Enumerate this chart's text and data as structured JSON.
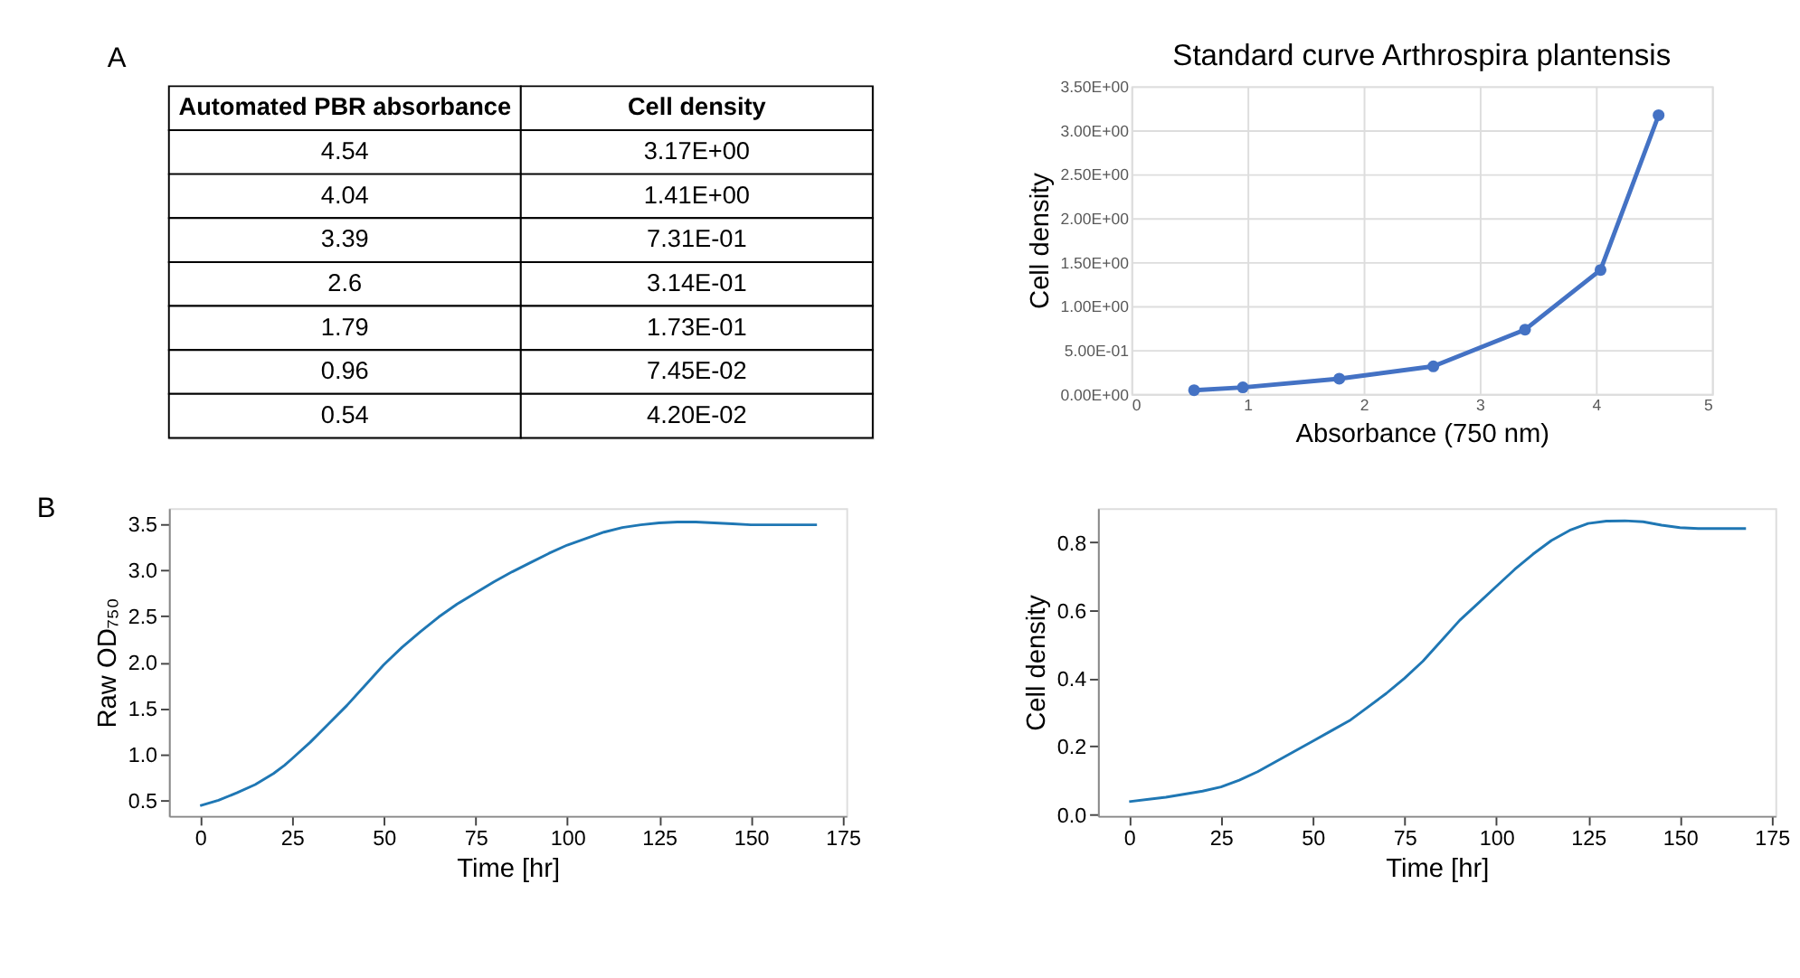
{
  "chart_data": [
    {
      "type": "other",
      "annotations": [
        "A",
        "Automated PBR absorbance",
        "Cell density",
        "4.54",
        "3.17E+00",
        "4.04",
        "1.41E+00",
        "3.39",
        "7.31E-01",
        "2.6",
        "3.14E-01",
        "1.79",
        "1.73E-01",
        "0.96",
        "7.45E-02",
        "0.54",
        "4.20E-02"
      ]
    },
    {
      "type": "line",
      "title": "Standard curve Arthrospira plantensis",
      "xlabel": "Absorbance (750 nm)",
      "ylabel": "Cell density",
      "x": [
        4.54,
        4.04,
        3.39,
        2.6,
        1.79,
        0.96,
        0.54
      ],
      "series": [
        {
          "color": "#4472c4",
          "values": [
            3.17,
            1.41,
            0.731,
            0.314,
            0.173,
            0.0745,
            0.042
          ]
        }
      ],
      "xlim": [
        0,
        5
      ],
      "xticks": [
        0,
        1,
        2,
        3,
        4,
        5
      ],
      "ylim": [
        0,
        3.5
      ],
      "yticks": [
        {
          "value": 0,
          "label": "0.00E+00"
        },
        {
          "value": 0.5,
          "label": "5.00E-01"
        },
        {
          "value": 1,
          "label": "1.00E+00"
        },
        {
          "value": 1.5,
          "label": "1.50E+00"
        },
        {
          "value": 2,
          "label": "2.00E+00"
        },
        {
          "value": 2.5,
          "label": "2.50E+00"
        },
        {
          "value": 3,
          "label": "3.00E+00"
        },
        {
          "value": 3.5,
          "label": "3.50E+00"
        }
      ],
      "grid": true,
      "marker": "circle"
    },
    {
      "type": "line",
      "xlabel": "Time [hr]",
      "ylabel": "Raw OD₇₅₀",
      "annotations": [
        "B"
      ],
      "x": [
        0,
        5,
        10,
        15,
        20,
        23,
        25,
        30,
        35,
        40,
        45,
        50,
        55,
        60,
        65,
        70,
        75,
        80,
        85,
        90,
        95,
        100,
        105,
        110,
        115,
        120,
        125,
        130,
        135,
        140,
        145,
        150,
        155,
        160,
        168
      ],
      "series": [
        {
          "color": "#1f77b4",
          "values": [
            0.44,
            0.5,
            0.58,
            0.67,
            0.79,
            0.88,
            0.95,
            1.13,
            1.33,
            1.53,
            1.75,
            1.97,
            2.16,
            2.33,
            2.49,
            2.63,
            2.75,
            2.87,
            2.98,
            3.08,
            3.18,
            3.27,
            3.34,
            3.41,
            3.46,
            3.49,
            3.51,
            3.52,
            3.52,
            3.51,
            3.5,
            3.49,
            3.49,
            3.49,
            3.49
          ]
        }
      ],
      "xlim": [
        -8.5,
        176
      ],
      "xticks": [
        0,
        25,
        50,
        75,
        100,
        125,
        150,
        175
      ],
      "ylim": [
        0.33,
        3.67
      ],
      "yticks": [
        0.5,
        {
          "value": 1,
          "label": "1.0"
        },
        1.5,
        {
          "value": 2,
          "label": "2.0"
        },
        2.5,
        {
          "value": 3,
          "label": "3.0"
        },
        3.5
      ],
      "grid": false
    },
    {
      "type": "line",
      "xlabel": "Time [hr]",
      "ylabel": "Cell density",
      "x": [
        0,
        10,
        20,
        25,
        30,
        35,
        40,
        45,
        50,
        55,
        60,
        65,
        70,
        75,
        80,
        85,
        90,
        95,
        100,
        105,
        110,
        115,
        120,
        125,
        130,
        135,
        140,
        145,
        150,
        155,
        160,
        168
      ],
      "series": [
        {
          "color": "#1f77b4",
          "values": [
            0.037,
            0.05,
            0.068,
            0.08,
            0.1,
            0.125,
            0.155,
            0.185,
            0.215,
            0.245,
            0.275,
            0.315,
            0.355,
            0.4,
            0.45,
            0.51,
            0.57,
            0.62,
            0.67,
            0.72,
            0.765,
            0.805,
            0.835,
            0.855,
            0.862,
            0.863,
            0.86,
            0.85,
            0.843,
            0.84,
            0.84,
            0.84
          ]
        }
      ],
      "xlim": [
        -8.5,
        176
      ],
      "xticks": [
        0,
        25,
        50,
        75,
        100,
        125,
        150,
        175
      ],
      "ylim": [
        -0.005,
        0.9
      ],
      "yticks": [
        {
          "value": 0,
          "label": "0.0"
        },
        0.2,
        0.4,
        0.6,
        0.8
      ],
      "grid": false
    }
  ]
}
